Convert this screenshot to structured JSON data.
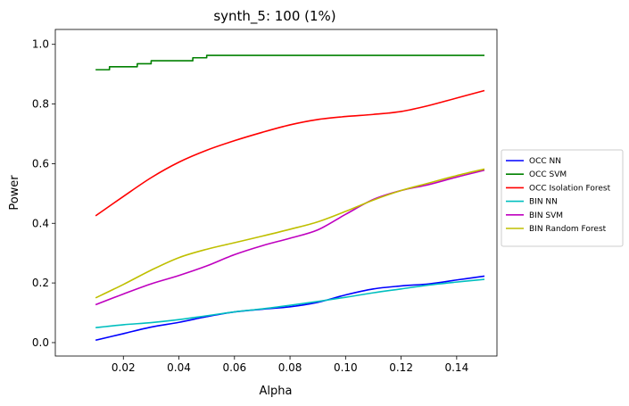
{
  "chart_data": {
    "type": "line",
    "title": "synth_5: 100 (1%)",
    "xlabel": "Alpha",
    "ylabel": "Power",
    "xlim": [
      -0.0045,
      0.1545
    ],
    "ylim": [
      -0.045,
      1.05
    ],
    "xticks": [
      0.02,
      0.04,
      0.06,
      0.08,
      0.1,
      0.12,
      0.14
    ],
    "xtick_labels": [
      "0.02",
      "0.04",
      "0.06",
      "0.08",
      "0.10",
      "0.12",
      "0.14"
    ],
    "yticks": [
      0.0,
      0.2,
      0.4,
      0.6,
      0.8,
      1.0
    ],
    "ytick_labels": [
      "0.0",
      "0.2",
      "0.4",
      "0.6",
      "0.8",
      "1.0"
    ],
    "grid": false,
    "legend_position": "right-outside",
    "series": [
      {
        "name": "OCC NN",
        "color": "#0000ff",
        "x": [
          0.01,
          0.02,
          0.03,
          0.04,
          0.05,
          0.06,
          0.07,
          0.08,
          0.09,
          0.1,
          0.11,
          0.12,
          0.13,
          0.14,
          0.15
        ],
        "y": [
          0.008,
          0.03,
          0.052,
          0.068,
          0.087,
          0.103,
          0.112,
          0.12,
          0.135,
          0.16,
          0.18,
          0.19,
          0.197,
          0.21,
          0.223
        ]
      },
      {
        "name": "OCC SVM",
        "color": "#008000",
        "step": true,
        "x": [
          0.01,
          0.015,
          0.015,
          0.025,
          0.025,
          0.03,
          0.03,
          0.045,
          0.045,
          0.05,
          0.05,
          0.15
        ],
        "y": [
          0.915,
          0.915,
          0.925,
          0.925,
          0.935,
          0.935,
          0.945,
          0.945,
          0.955,
          0.955,
          0.963,
          0.963
        ]
      },
      {
        "name": "OCC Isolation Forest",
        "color": "#ff0000",
        "x": [
          0.01,
          0.02,
          0.03,
          0.04,
          0.05,
          0.06,
          0.07,
          0.08,
          0.09,
          0.1,
          0.11,
          0.12,
          0.13,
          0.14,
          0.15
        ],
        "y": [
          0.425,
          0.49,
          0.553,
          0.605,
          0.645,
          0.677,
          0.705,
          0.73,
          0.748,
          0.758,
          0.765,
          0.775,
          0.795,
          0.82,
          0.845
        ]
      },
      {
        "name": "BIN NN",
        "color": "#00bfbf",
        "x": [
          0.01,
          0.02,
          0.03,
          0.04,
          0.05,
          0.06,
          0.07,
          0.08,
          0.09,
          0.1,
          0.11,
          0.12,
          0.13,
          0.14,
          0.15
        ],
        "y": [
          0.05,
          0.06,
          0.067,
          0.077,
          0.09,
          0.103,
          0.113,
          0.125,
          0.138,
          0.152,
          0.167,
          0.18,
          0.193,
          0.203,
          0.212
        ]
      },
      {
        "name": "BIN SVM",
        "color": "#bf00bf",
        "x": [
          0.01,
          0.02,
          0.03,
          0.04,
          0.05,
          0.06,
          0.07,
          0.08,
          0.09,
          0.1,
          0.11,
          0.12,
          0.13,
          0.14,
          0.15
        ],
        "y": [
          0.127,
          0.163,
          0.197,
          0.225,
          0.257,
          0.295,
          0.325,
          0.35,
          0.378,
          0.43,
          0.48,
          0.51,
          0.53,
          0.555,
          0.578
        ]
      },
      {
        "name": "BIN Random Forest",
        "color": "#bfbf00",
        "x": [
          0.01,
          0.02,
          0.03,
          0.04,
          0.05,
          0.06,
          0.07,
          0.08,
          0.09,
          0.1,
          0.11,
          0.12,
          0.13,
          0.14,
          0.15
        ],
        "y": [
          0.15,
          0.195,
          0.243,
          0.285,
          0.313,
          0.335,
          0.357,
          0.38,
          0.405,
          0.44,
          0.478,
          0.51,
          0.535,
          0.56,
          0.582
        ]
      }
    ]
  }
}
